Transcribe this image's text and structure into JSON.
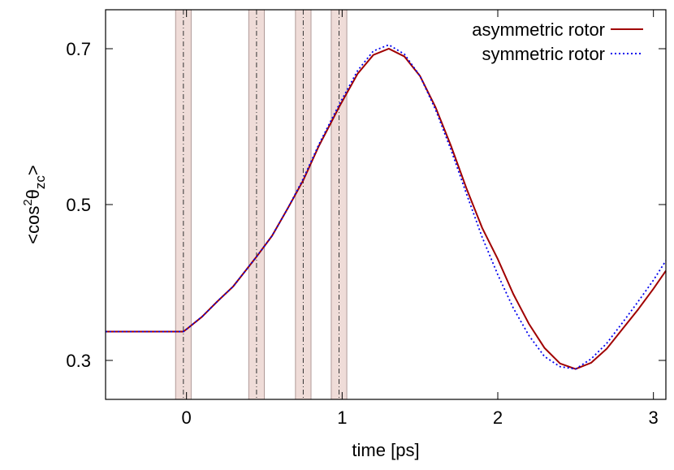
{
  "chart_data": {
    "type": "line",
    "x_label": "time [ps]",
    "y_label": {
      "prefix": "<cos",
      "sup": "2",
      "mid": "θ",
      "sub": "zc",
      "suffix": ">"
    },
    "xlim": [
      -0.52,
      3.08
    ],
    "ylim": [
      0.25,
      0.75
    ],
    "xticks": [
      0,
      1,
      2,
      3
    ],
    "yticks": [
      0.3,
      0.5,
      0.7
    ],
    "legend": "top-right",
    "pulse_centers": [
      -0.02,
      0.45,
      0.75,
      0.98
    ],
    "pulse_width": 0.1,
    "x": [
      -0.52,
      -0.02,
      0,
      0.1,
      0.2,
      0.3,
      0.45,
      0.55,
      0.65,
      0.75,
      0.85,
      0.98,
      1.1,
      1.2,
      1.3,
      1.4,
      1.5,
      1.6,
      1.7,
      1.8,
      1.9,
      2.0,
      2.1,
      2.2,
      2.3,
      2.4,
      2.5,
      2.6,
      2.7,
      2.8,
      2.9,
      3.0,
      3.08
    ],
    "series": [
      {
        "name": "asymmetric rotor",
        "color": "#a00000",
        "dash": false,
        "values": [
          0.337,
          0.337,
          0.34,
          0.356,
          0.376,
          0.395,
          0.433,
          0.46,
          0.495,
          0.531,
          0.575,
          0.625,
          0.668,
          0.692,
          0.7,
          0.69,
          0.665,
          0.625,
          0.575,
          0.52,
          0.47,
          0.43,
          0.385,
          0.347,
          0.316,
          0.296,
          0.289,
          0.297,
          0.315,
          0.34,
          0.365,
          0.392,
          0.415
        ]
      },
      {
        "name": "symmetric rotor",
        "color": "#0000ee",
        "dash": true,
        "values": [
          0.337,
          0.337,
          0.34,
          0.356,
          0.376,
          0.395,
          0.433,
          0.46,
          0.495,
          0.533,
          0.577,
          0.628,
          0.672,
          0.697,
          0.705,
          0.693,
          0.665,
          0.622,
          0.57,
          0.513,
          0.458,
          0.41,
          0.367,
          0.332,
          0.305,
          0.292,
          0.289,
          0.302,
          0.322,
          0.348,
          0.375,
          0.403,
          0.428
        ]
      }
    ]
  }
}
